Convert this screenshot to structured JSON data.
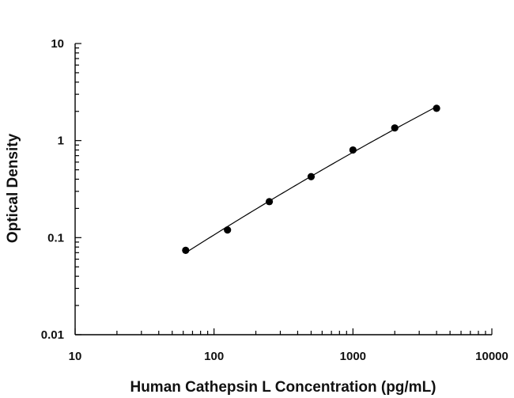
{
  "chart_data": {
    "type": "scatter",
    "title": "",
    "xlabel": "Human Cathepsin L Concentration (pg/mL)",
    "ylabel": "Optical Density",
    "x_scale": "log",
    "y_scale": "log",
    "xlim": [
      10,
      10000
    ],
    "ylim": [
      0.01,
      10
    ],
    "x_ticks": [
      "10",
      "100",
      "1000",
      "10000"
    ],
    "y_ticks": [
      "10",
      "1",
      "0.1",
      "0.01"
    ],
    "grid": false,
    "legend": "none",
    "series": [
      {
        "x": [
          62.5,
          125,
          250,
          500,
          1000,
          2000,
          4000
        ],
        "y": [
          0.074,
          0.12,
          0.235,
          0.425,
          0.8,
          1.35,
          2.15
        ],
        "fit_line": true
      }
    ],
    "colors": {
      "points": "#000000",
      "curve": "#000000",
      "axes": "#000000"
    }
  }
}
